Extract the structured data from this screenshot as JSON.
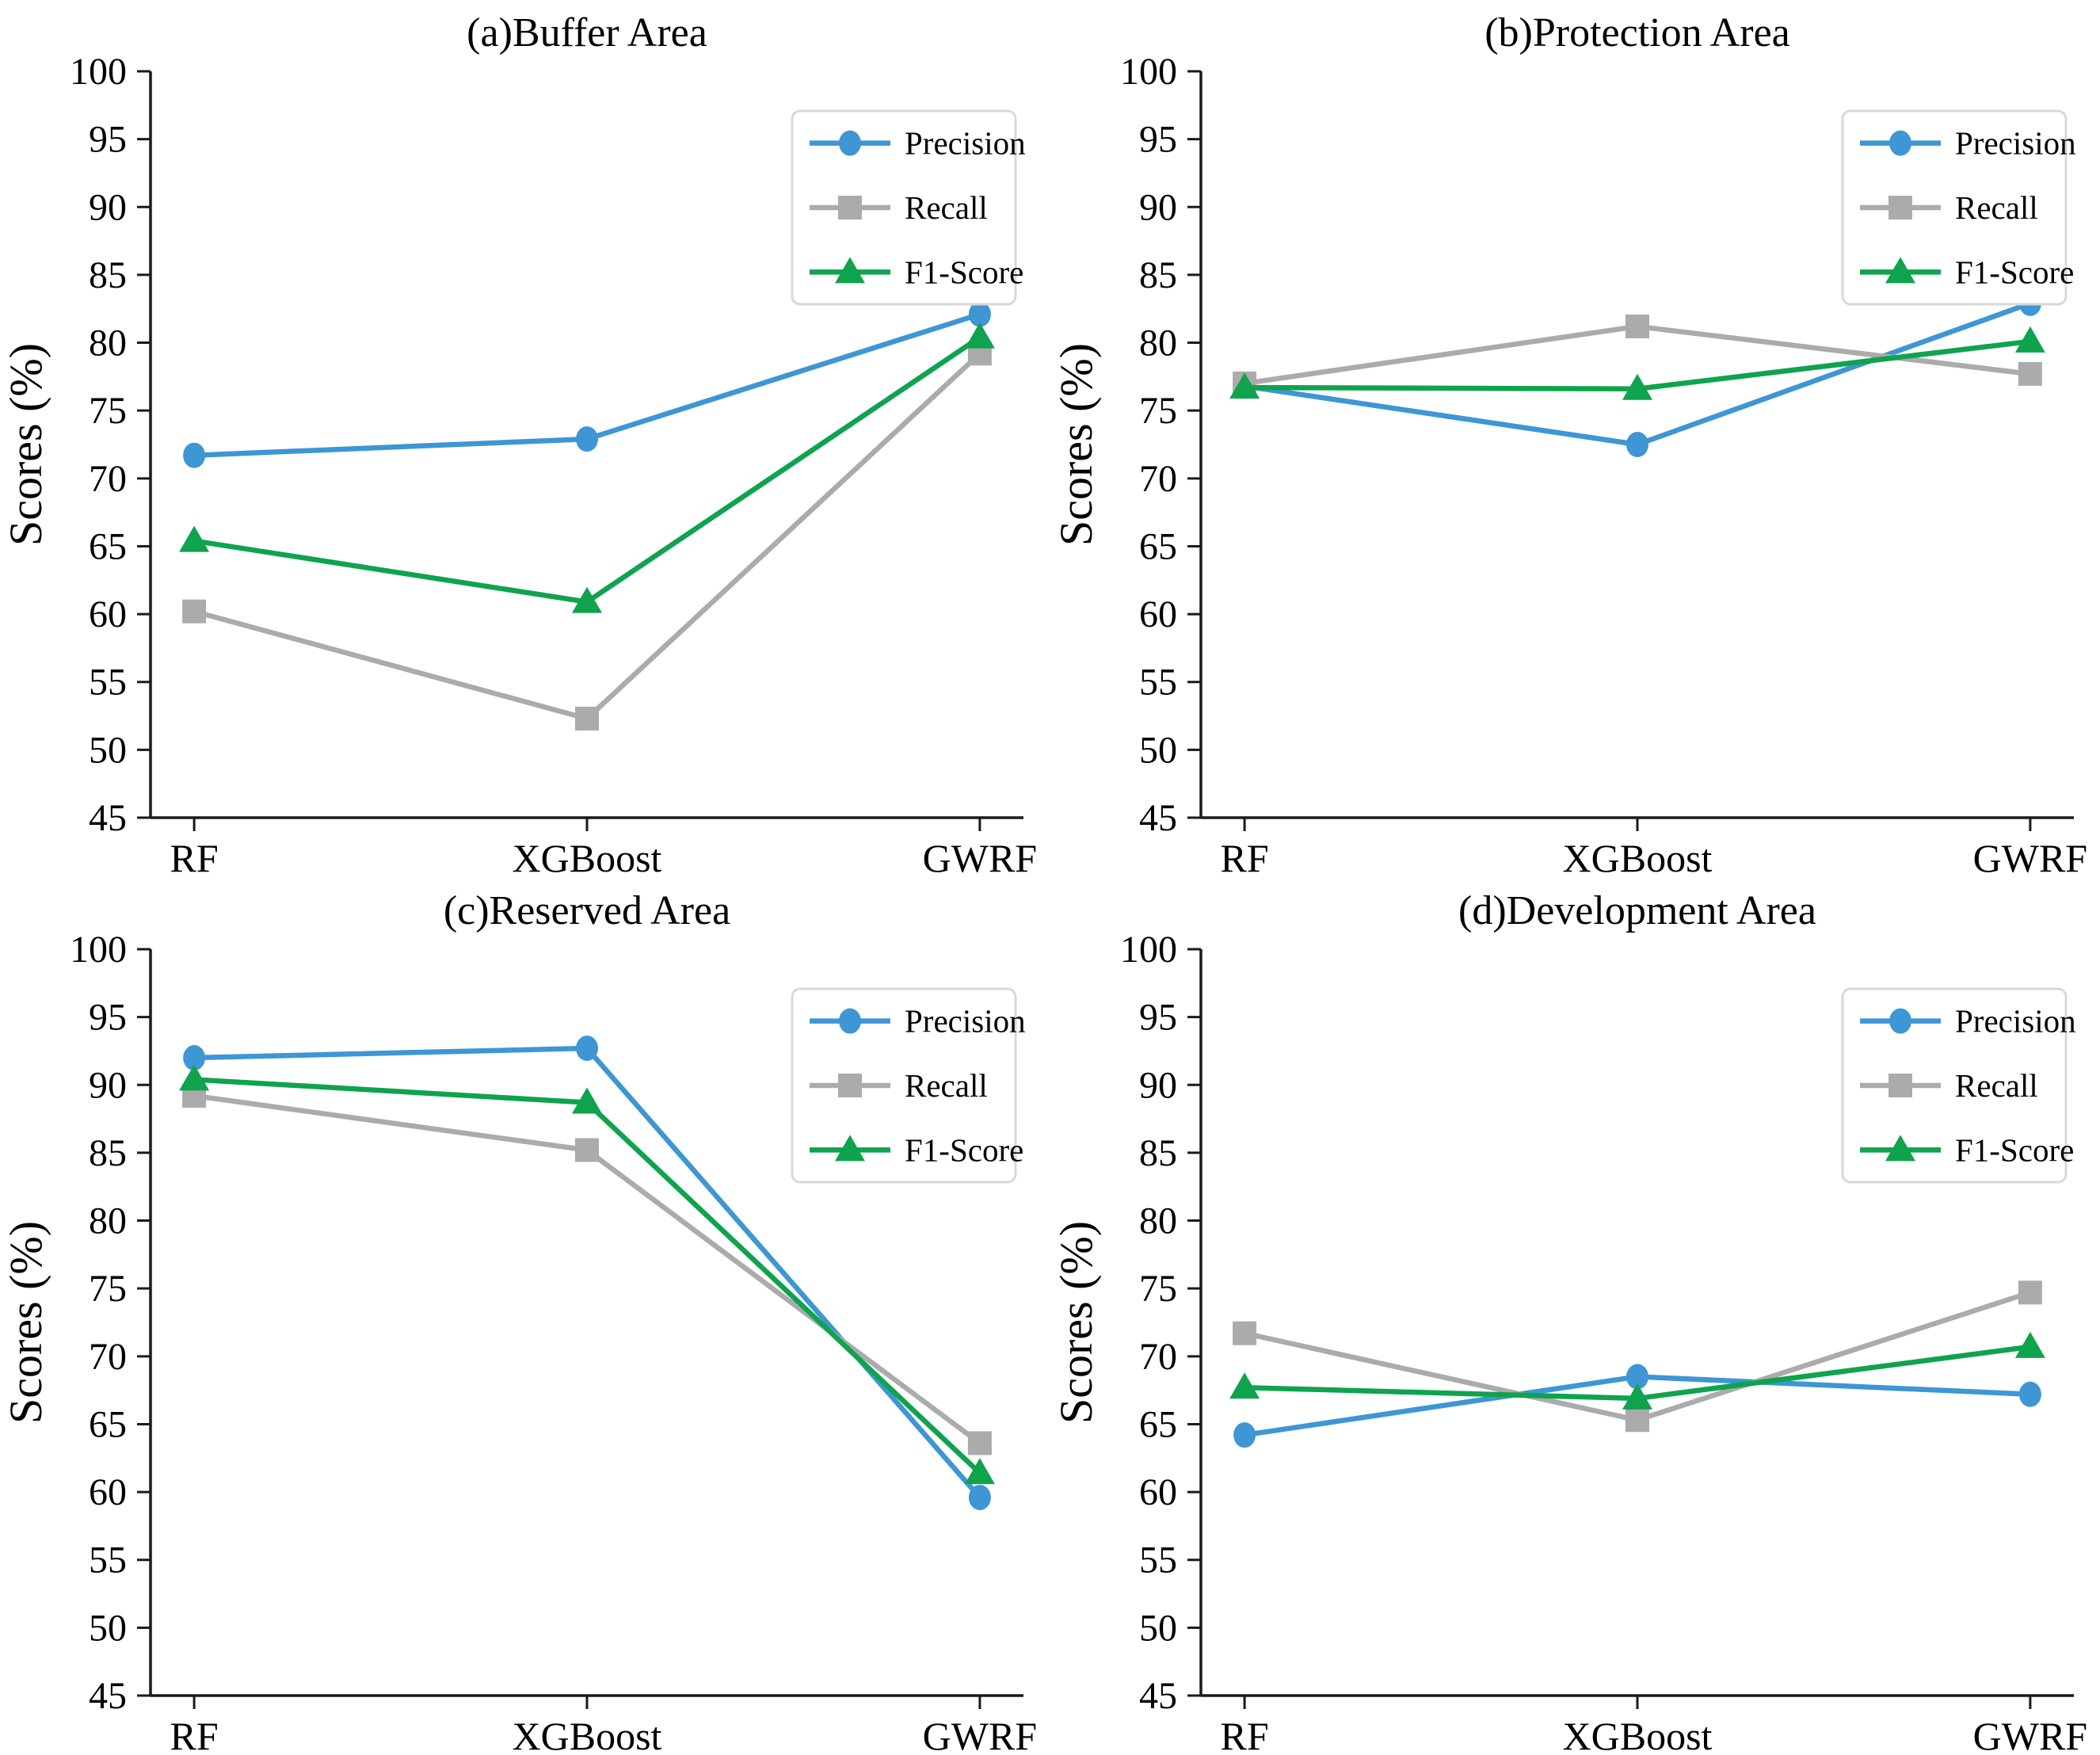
{
  "figure": {
    "ylabel": "Scores (%)",
    "categories": [
      "RF",
      "XGBoost",
      "GWRF"
    ],
    "ylim": [
      45,
      100
    ],
    "ytick_step": 5,
    "legend_labels": [
      "Precision",
      "Recall",
      "F1-Score"
    ],
    "colors": {
      "precision": "#3E96D4",
      "recall": "#ABABAB",
      "f1_score": "#0FA34E",
      "spine": "#1a1a1a",
      "legend_border": "#d8d8d8",
      "background": "#ffffff"
    }
  },
  "chart_data": [
    {
      "id": "a",
      "type": "line",
      "title": "(a)Buffer Area",
      "xlabel": "",
      "ylabel": "Scores (%)",
      "categories": [
        "RF",
        "XGBoost",
        "GWRF"
      ],
      "ylim": [
        45,
        100
      ],
      "yticks": [
        45,
        50,
        55,
        60,
        65,
        70,
        75,
        80,
        85,
        90,
        95,
        100
      ],
      "grid": false,
      "legend_position": "upper right",
      "series": [
        {
          "name": "Precision",
          "marker": "circle",
          "color": "#3E96D4",
          "values": [
            71.7,
            72.9,
            82.1
          ]
        },
        {
          "name": "Recall",
          "marker": "square",
          "color": "#ABABAB",
          "values": [
            60.2,
            52.3,
            79.2
          ]
        },
        {
          "name": "F1-Score",
          "marker": "triangle",
          "color": "#0FA34E",
          "values": [
            65.4,
            60.9,
            80.4
          ]
        }
      ]
    },
    {
      "id": "b",
      "type": "line",
      "title": "(b)Protection Area",
      "xlabel": "",
      "ylabel": "Scores (%)",
      "categories": [
        "RF",
        "XGBoost",
        "GWRF"
      ],
      "ylim": [
        45,
        100
      ],
      "yticks": [
        45,
        50,
        55,
        60,
        65,
        70,
        75,
        80,
        85,
        90,
        95,
        100
      ],
      "grid": false,
      "legend_position": "upper right",
      "series": [
        {
          "name": "Precision",
          "marker": "circle",
          "color": "#3E96D4",
          "values": [
            76.8,
            72.5,
            82.9
          ]
        },
        {
          "name": "Recall",
          "marker": "square",
          "color": "#ABABAB",
          "values": [
            77.0,
            81.2,
            77.7
          ]
        },
        {
          "name": "F1-Score",
          "marker": "triangle",
          "color": "#0FA34E",
          "values": [
            76.7,
            76.6,
            80.1
          ]
        }
      ]
    },
    {
      "id": "c",
      "type": "line",
      "title": "(c)Reserved Area",
      "xlabel": "",
      "ylabel": "Scores (%)",
      "categories": [
        "RF",
        "XGBoost",
        "GWRF"
      ],
      "ylim": [
        45,
        100
      ],
      "yticks": [
        45,
        50,
        55,
        60,
        65,
        70,
        75,
        80,
        85,
        90,
        95,
        100
      ],
      "grid": false,
      "legend_position": "upper right",
      "series": [
        {
          "name": "Precision",
          "marker": "circle",
          "color": "#3E96D4",
          "values": [
            92.0,
            92.7,
            59.6
          ]
        },
        {
          "name": "Recall",
          "marker": "square",
          "color": "#ABABAB",
          "values": [
            89.2,
            85.2,
            63.6
          ]
        },
        {
          "name": "F1-Score",
          "marker": "triangle",
          "color": "#0FA34E",
          "values": [
            90.4,
            88.7,
            61.4
          ]
        }
      ]
    },
    {
      "id": "d",
      "type": "line",
      "title": "(d)Development Area",
      "xlabel": "",
      "ylabel": "Scores (%)",
      "categories": [
        "RF",
        "XGBoost",
        "GWRF"
      ],
      "ylim": [
        45,
        100
      ],
      "yticks": [
        45,
        50,
        55,
        60,
        65,
        70,
        75,
        80,
        85,
        90,
        95,
        100
      ],
      "grid": false,
      "legend_position": "upper right",
      "series": [
        {
          "name": "Precision",
          "marker": "circle",
          "color": "#3E96D4",
          "values": [
            64.2,
            68.5,
            67.2
          ]
        },
        {
          "name": "Recall",
          "marker": "square",
          "color": "#ABABAB",
          "values": [
            71.7,
            65.3,
            74.7
          ]
        },
        {
          "name": "F1-Score",
          "marker": "triangle",
          "color": "#0FA34E",
          "values": [
            67.7,
            66.9,
            70.7
          ]
        }
      ]
    }
  ]
}
